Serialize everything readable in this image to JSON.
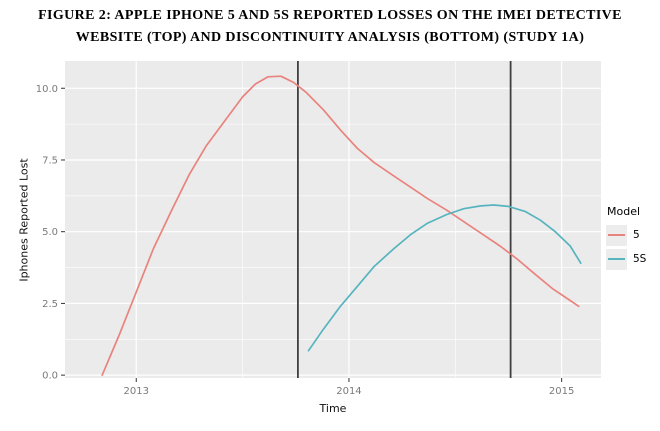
{
  "figure": {
    "title_line1": "FIGURE 2: APPLE IPHONE 5 AND 5S REPORTED LOSSES ON THE IMEI DETECTIVE",
    "title_line2": "WEBSITE (TOP) AND DISCONTINUITY ANALYSIS (BOTTOM) (STUDY 1A)"
  },
  "chart_data": {
    "type": "line",
    "title": "Apple iPhone 5 and 5S reported losses on the IMEI Detective website",
    "xlabel": "Time",
    "ylabel": "Iphones Reported Lost",
    "xlim": [
      2012.665,
      2015.185
    ],
    "ylim": [
      -0.1,
      10.95
    ],
    "grid": true,
    "legend_position": "right",
    "x_ticks": [
      {
        "value": 2013,
        "label": "2013"
      },
      {
        "value": 2014,
        "label": "2014"
      },
      {
        "value": 2015,
        "label": "2015"
      }
    ],
    "y_ticks": [
      {
        "value": 0,
        "label": "0.0"
      },
      {
        "value": 2.5,
        "label": "2.5"
      },
      {
        "value": 5,
        "label": "5.0"
      },
      {
        "value": 7.5,
        "label": "7.5"
      },
      {
        "value": 10,
        "label": "10.0"
      }
    ],
    "x_minor": [
      2013.5,
      2014.5
    ],
    "y_minor": [
      1.25,
      3.75,
      6.25,
      8.75
    ],
    "panel": {
      "bg": "#EBEBEB",
      "grid_major": "#FFFFFF",
      "grid_minor": "#FFFFFF"
    },
    "vlines": {
      "x": [
        2013.76,
        2014.76
      ],
      "color": "#3F3F3F"
    },
    "legend": {
      "title": "Model"
    },
    "series": [
      {
        "name": "5",
        "color": "#E9837E",
        "x": [
          2012.84,
          2012.92,
          2013.0,
          2013.08,
          2013.17,
          2013.25,
          2013.33,
          2013.42,
          2013.5,
          2013.56,
          2013.62,
          2013.68,
          2013.74,
          2013.8,
          2013.88,
          2013.96,
          2014.04,
          2014.12,
          2014.21,
          2014.29,
          2014.37,
          2014.46,
          2014.54,
          2014.62,
          2014.71,
          2014.79,
          2014.87,
          2014.96,
          2015.04,
          2015.08
        ],
        "y": [
          0.0,
          1.4,
          2.9,
          4.4,
          5.8,
          7.0,
          8.0,
          8.9,
          9.7,
          10.15,
          10.4,
          10.42,
          10.2,
          9.85,
          9.25,
          8.55,
          7.9,
          7.4,
          6.95,
          6.55,
          6.15,
          5.75,
          5.35,
          4.95,
          4.5,
          4.05,
          3.55,
          3.0,
          2.6,
          2.4
        ]
      },
      {
        "name": "5S",
        "color": "#56B4BF",
        "x": [
          2013.81,
          2013.88,
          2013.96,
          2014.04,
          2014.12,
          2014.21,
          2014.29,
          2014.37,
          2014.46,
          2014.54,
          2014.62,
          2014.68,
          2014.75,
          2014.83,
          2014.9,
          2014.97,
          2015.04,
          2015.09
        ],
        "y": [
          0.85,
          1.6,
          2.4,
          3.1,
          3.8,
          4.4,
          4.9,
          5.3,
          5.6,
          5.8,
          5.9,
          5.93,
          5.88,
          5.7,
          5.4,
          5.0,
          4.5,
          3.9
        ]
      }
    ]
  }
}
